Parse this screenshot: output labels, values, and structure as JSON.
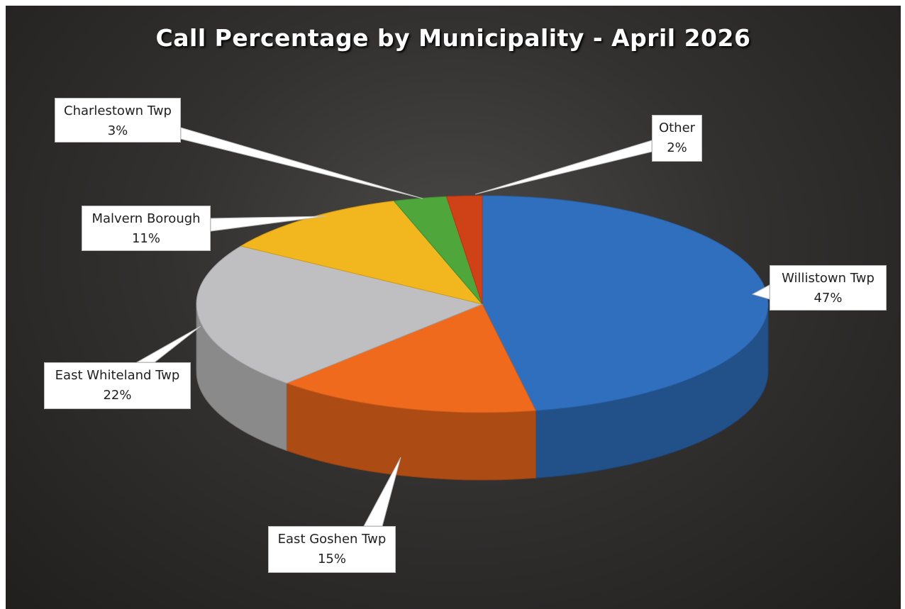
{
  "chart_data": {
    "type": "pie",
    "title": "Call Percentage by Municipality - April 2026",
    "slices": [
      {
        "label": "Willistown Twp",
        "value": 47,
        "value_label": "47%",
        "color": "#2f6fbe"
      },
      {
        "label": "East Goshen Twp",
        "value": 15,
        "value_label": "15%",
        "color": "#ef6a1c"
      },
      {
        "label": "East Whiteland Twp",
        "value": 22,
        "value_label": "22%",
        "color": "#bfbfc1"
      },
      {
        "label": "Malvern Borough",
        "value": 11,
        "value_label": "11%",
        "color": "#f2b61e"
      },
      {
        "label": "Charlestown Twp",
        "value": 3,
        "value_label": "3%",
        "color": "#4fa63a"
      },
      {
        "label": "Other",
        "value": 2,
        "value_label": "2%",
        "color": "#cf4218"
      }
    ],
    "background": "#2b2a29",
    "legend": "none"
  }
}
